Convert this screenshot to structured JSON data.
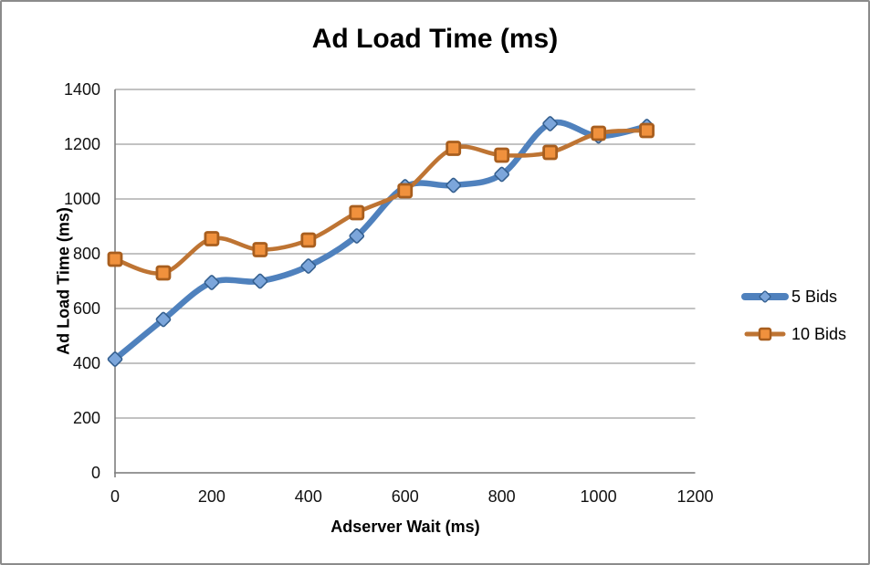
{
  "chart_data": {
    "type": "line",
    "title": "Ad Load Time (ms)",
    "xlabel": "Adserver Wait (ms)",
    "ylabel": "Ad Load Time (ms)",
    "x": [
      0,
      100,
      200,
      300,
      400,
      500,
      600,
      700,
      800,
      900,
      1000,
      1100
    ],
    "series": [
      {
        "name": "5 Bids",
        "marker": "diamond",
        "line_color": "#4F81BD",
        "marker_fill": "#7CA6DB",
        "marker_stroke": "#34movie5f8f",
        "values": [
          415,
          560,
          695,
          700,
          755,
          865,
          1045,
          1050,
          1090,
          1275,
          1230,
          1265
        ]
      },
      {
        "name": "10 Bids",
        "marker": "square",
        "line_color": "#BE7433",
        "marker_fill": "#F0913D",
        "marker_stroke": "#A85E1E",
        "values": [
          780,
          730,
          855,
          815,
          850,
          950,
          1030,
          1185,
          1160,
          1170,
          1240,
          1250
        ]
      }
    ],
    "xlim": [
      0,
      1200
    ],
    "ylim": [
      0,
      1400
    ],
    "x_ticks": [
      0,
      200,
      400,
      600,
      800,
      1000,
      1200
    ],
    "y_ticks": [
      0,
      200,
      400,
      600,
      800,
      1000,
      1200,
      1400
    ],
    "grid": true,
    "smooth": true,
    "legend_position": "right",
    "gridline_color": "#9D9D9D",
    "axis_color": "#7F7F7F"
  }
}
